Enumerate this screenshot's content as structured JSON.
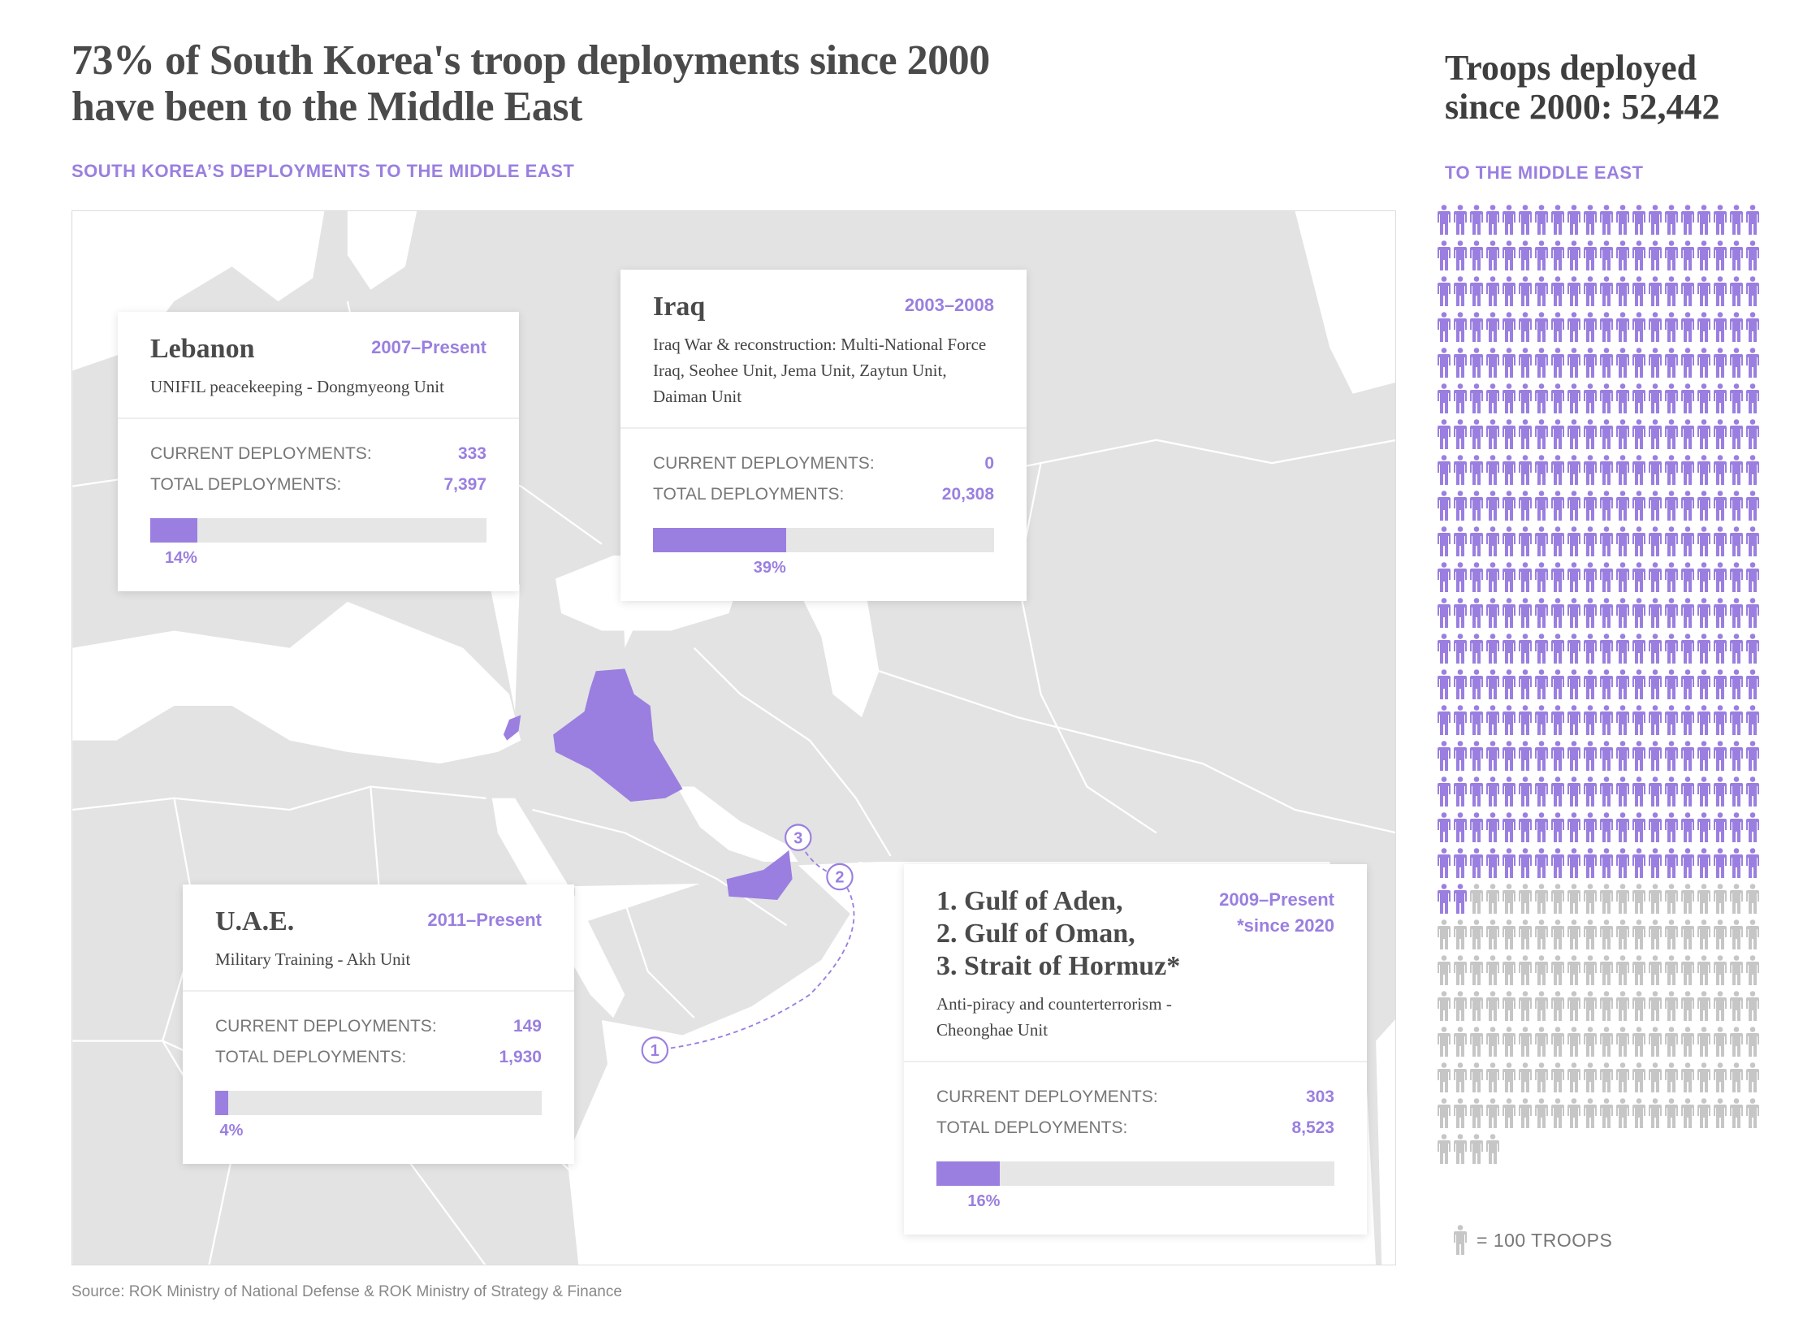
{
  "headline": "73% of South Korea's troop deployments since 2000 have been to the Middle East",
  "map_section": {
    "kicker": "SOUTH KOREA’S DEPLOYMENTS TO THE MIDDLE EAST"
  },
  "colors": {
    "accent": "#9a7fe0",
    "land": "#e3e3e3",
    "bar_track": "#e6e6e6",
    "inactive_icon": "#c6c6c6"
  },
  "cards": {
    "lebanon": {
      "title": "Lebanon",
      "date": "2007–Present",
      "desc": "UNIFIL peacekeeping - Dongmyeong Unit",
      "current_label": "CURRENT DEPLOYMENTS:",
      "current": "333",
      "total_label": "TOTAL DEPLOYMENTS:",
      "total": "7,397",
      "percent": 14,
      "percent_label": "14%"
    },
    "iraq": {
      "title": "Iraq",
      "date": "2003–2008",
      "desc": "Iraq War & reconstruction: Multi-National Force Iraq, Seohee Unit, Jema Unit, Zaytun Unit, Daiman Unit",
      "current_label": "CURRENT DEPLOYMENTS:",
      "current": "0",
      "total_label": "TOTAL DEPLOYMENTS:",
      "total": "20,308",
      "percent": 39,
      "percent_label": "39%"
    },
    "uae": {
      "title": "U.A.E.",
      "date": "2011–Present",
      "desc": "Military Training - Akh Unit",
      "current_label": "CURRENT DEPLOYMENTS:",
      "current": "149",
      "total_label": "TOTAL DEPLOYMENTS:",
      "total": "1,930",
      "percent": 4,
      "percent_label": "4%"
    },
    "gulf": {
      "title_lines": [
        "1. Gulf of Aden,",
        "2. Gulf of Oman,",
        "3. Strait of Hormuz*"
      ],
      "date": "2009–Present",
      "date_note": "*since 2020",
      "desc": "Anti-piracy and counterterrorism - Cheonghae Unit",
      "current_label": "CURRENT DEPLOYMENTS:",
      "current": "303",
      "total_label": "TOTAL DEPLOYMENTS:",
      "total": "8,523",
      "percent": 16,
      "percent_label": "16%"
    }
  },
  "map_markers": [
    "1",
    "2",
    "3"
  ],
  "highlighted_countries": [
    "Lebanon",
    "Iraq",
    "U.A.E."
  ],
  "sidebar": {
    "title_line1": "Troops deployed",
    "title_line2": "since 2000: 52,442",
    "kicker": "TO THE MIDDLE EAST",
    "pictogram": {
      "icons_highlighted": 382,
      "icons_total": 524,
      "per_row": 20,
      "icon": "person-icon"
    },
    "legend": "= 100 TROOPS"
  },
  "source": "Source: ROK Ministry of National Defense & ROK Ministry of Strategy & Finance"
}
